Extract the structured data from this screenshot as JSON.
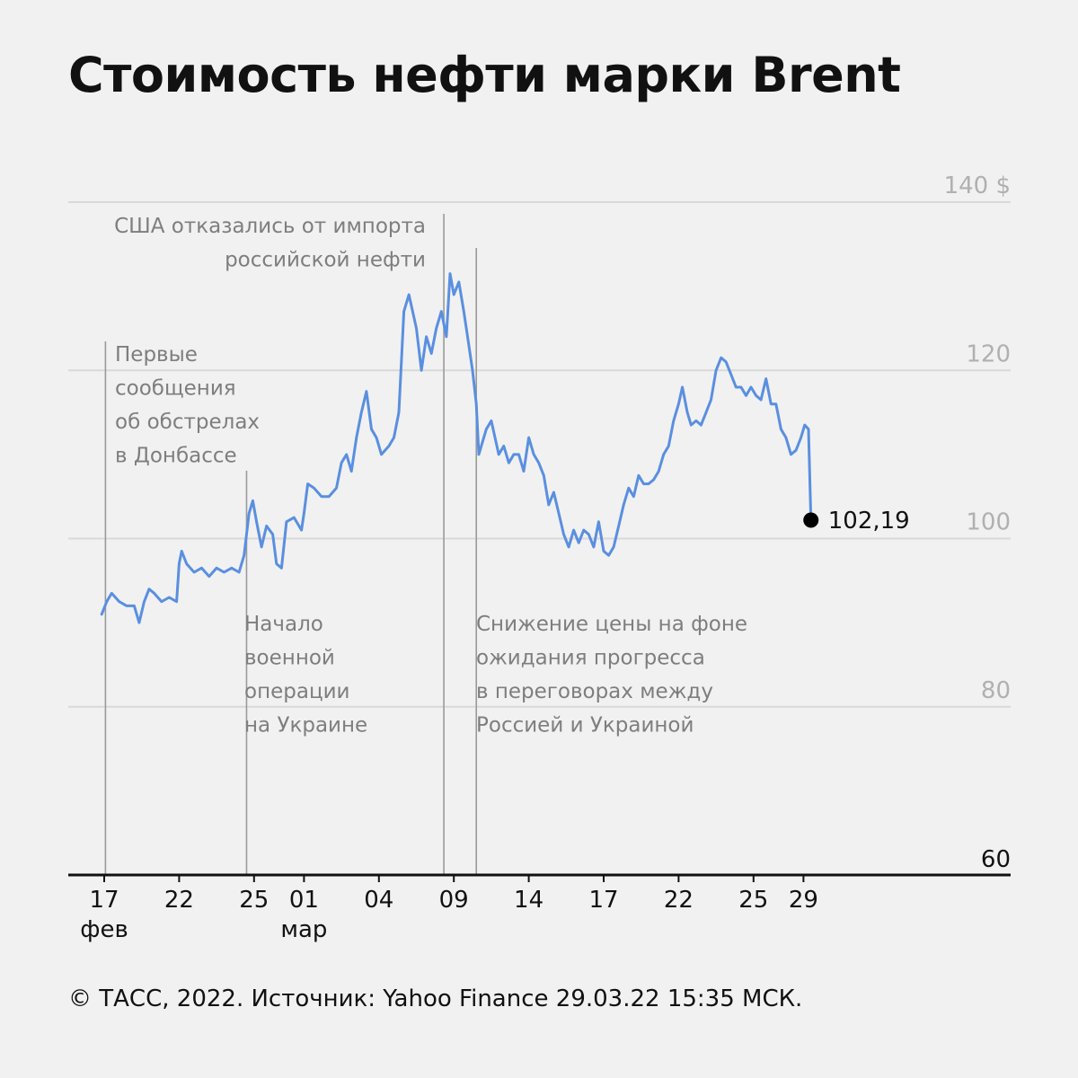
{
  "title": "Стоимость нефти марки Brent",
  "footer": "© ТАСС, 2022. Источник: Yahoo Finance 29.03.22 15:35 МСК.",
  "colors": {
    "line": "#5a8fe0",
    "grid": "#d9d9d9",
    "axis": "#111111",
    "annotation": "#7e7e7e",
    "background": "#f1f1f1"
  },
  "chart_data": {
    "type": "line",
    "title": "Стоимость нефти марки Brent",
    "ylim": [
      60,
      140
    ],
    "yticks": [
      {
        "value": 140,
        "label": "140 $"
      },
      {
        "value": 120,
        "label": "120"
      },
      {
        "value": 100,
        "label": "100"
      },
      {
        "value": 80,
        "label": "80"
      },
      {
        "value": 60,
        "label": "60"
      }
    ],
    "xticks": [
      {
        "pos": 0,
        "label": "17",
        "sub": "фев"
      },
      {
        "pos": 3,
        "label": "22",
        "sub": ""
      },
      {
        "pos": 6,
        "label": "25",
        "sub": ""
      },
      {
        "pos": 8,
        "label": "01",
        "sub": "мар"
      },
      {
        "pos": 11,
        "label": "04",
        "sub": ""
      },
      {
        "pos": 14,
        "label": "09",
        "sub": ""
      },
      {
        "pos": 17,
        "label": "14",
        "sub": ""
      },
      {
        "pos": 20,
        "label": "17",
        "sub": ""
      },
      {
        "pos": 23,
        "label": "22",
        "sub": ""
      },
      {
        "pos": 26,
        "label": "25",
        "sub": ""
      },
      {
        "pos": 28,
        "label": "29",
        "sub": ""
      }
    ],
    "series": [
      {
        "values": [
          [
            -0.1,
            91.0
          ],
          [
            0.1,
            92.5
          ],
          [
            0.3,
            93.5
          ],
          [
            0.6,
            92.5
          ],
          [
            0.9,
            92.0
          ],
          [
            1.2,
            92.0
          ],
          [
            1.4,
            90.0
          ],
          [
            1.6,
            92.5
          ],
          [
            1.8,
            94.0
          ],
          [
            2.0,
            93.5
          ],
          [
            2.3,
            92.5
          ],
          [
            2.6,
            93.0
          ],
          [
            2.9,
            92.5
          ],
          [
            3.0,
            97.0
          ],
          [
            3.1,
            98.5
          ],
          [
            3.3,
            97.0
          ],
          [
            3.6,
            96.0
          ],
          [
            3.9,
            96.5
          ],
          [
            4.2,
            95.5
          ],
          [
            4.5,
            96.5
          ],
          [
            4.8,
            96.0
          ],
          [
            5.1,
            96.5
          ],
          [
            5.4,
            96.0
          ],
          [
            5.6,
            98.0
          ],
          [
            5.8,
            103.0
          ],
          [
            5.95,
            104.5
          ],
          [
            6.1,
            102.0
          ],
          [
            6.3,
            99.0
          ],
          [
            6.5,
            101.5
          ],
          [
            6.75,
            100.5
          ],
          [
            6.9,
            97.0
          ],
          [
            7.1,
            96.5
          ],
          [
            7.3,
            102.0
          ],
          [
            7.6,
            102.5
          ],
          [
            7.9,
            101.0
          ],
          [
            8.0,
            103.0
          ],
          [
            8.15,
            106.5
          ],
          [
            8.4,
            106.0
          ],
          [
            8.7,
            105.0
          ],
          [
            9.0,
            105.0
          ],
          [
            9.3,
            106.0
          ],
          [
            9.5,
            109.0
          ],
          [
            9.7,
            110.0
          ],
          [
            9.9,
            108.0
          ],
          [
            10.1,
            112.0
          ],
          [
            10.3,
            115.0
          ],
          [
            10.5,
            117.5
          ],
          [
            10.7,
            113.0
          ],
          [
            10.9,
            112.0
          ],
          [
            11.1,
            110.0
          ],
          [
            11.4,
            111.0
          ],
          [
            11.6,
            112.0
          ],
          [
            11.8,
            115.0
          ],
          [
            12.0,
            127.0
          ],
          [
            12.2,
            129.0
          ],
          [
            12.5,
            125.0
          ],
          [
            12.7,
            120.0
          ],
          [
            12.9,
            124.0
          ],
          [
            13.1,
            122.0
          ],
          [
            13.3,
            125.0
          ],
          [
            13.5,
            127.0
          ],
          [
            13.7,
            124.0
          ],
          [
            13.85,
            131.5
          ],
          [
            14.0,
            129.0
          ],
          [
            14.2,
            130.5
          ],
          [
            14.4,
            127.0
          ],
          [
            14.55,
            124.0
          ],
          [
            14.75,
            120.0
          ],
          [
            14.9,
            116.0
          ],
          [
            15.0,
            110.0
          ],
          [
            15.3,
            113.0
          ],
          [
            15.5,
            114.0
          ],
          [
            15.8,
            110.0
          ],
          [
            16.0,
            111.0
          ],
          [
            16.2,
            109.0
          ],
          [
            16.4,
            110.0
          ],
          [
            16.6,
            110.0
          ],
          [
            16.8,
            108.0
          ],
          [
            17.0,
            112.0
          ],
          [
            17.2,
            110.0
          ],
          [
            17.4,
            109.0
          ],
          [
            17.6,
            107.5
          ],
          [
            17.8,
            104.0
          ],
          [
            18.0,
            105.5
          ],
          [
            18.2,
            103.0
          ],
          [
            18.4,
            100.5
          ],
          [
            18.6,
            99.0
          ],
          [
            18.8,
            101.0
          ],
          [
            19.0,
            99.5
          ],
          [
            19.2,
            101.0
          ],
          [
            19.4,
            100.5
          ],
          [
            19.6,
            99.0
          ],
          [
            19.8,
            102.0
          ],
          [
            20.0,
            98.5
          ],
          [
            20.2,
            98.0
          ],
          [
            20.4,
            99.0
          ],
          [
            20.6,
            101.5
          ],
          [
            20.8,
            104.0
          ],
          [
            21.0,
            106.0
          ],
          [
            21.2,
            105.0
          ],
          [
            21.4,
            107.5
          ],
          [
            21.6,
            106.5
          ],
          [
            21.8,
            106.5
          ],
          [
            22.0,
            107.0
          ],
          [
            22.2,
            108.0
          ],
          [
            22.4,
            110.0
          ],
          [
            22.6,
            111.0
          ],
          [
            22.8,
            114.0
          ],
          [
            23.0,
            116.0
          ],
          [
            23.15,
            118.0
          ],
          [
            23.35,
            115.0
          ],
          [
            23.5,
            113.5
          ],
          [
            23.7,
            114.0
          ],
          [
            23.9,
            113.5
          ],
          [
            24.1,
            115.0
          ],
          [
            24.3,
            116.5
          ],
          [
            24.5,
            120.0
          ],
          [
            24.7,
            121.5
          ],
          [
            24.9,
            121.0
          ],
          [
            25.1,
            119.5
          ],
          [
            25.3,
            118.0
          ],
          [
            25.5,
            118.0
          ],
          [
            25.7,
            117.0
          ],
          [
            25.9,
            118.0
          ],
          [
            26.1,
            117.0
          ],
          [
            26.3,
            116.5
          ],
          [
            26.5,
            119.0
          ],
          [
            26.7,
            116.0
          ],
          [
            26.9,
            116.0
          ],
          [
            27.1,
            113.0
          ],
          [
            27.3,
            112.0
          ],
          [
            27.5,
            110.0
          ],
          [
            27.7,
            110.5
          ],
          [
            27.9,
            112.0
          ],
          [
            28.05,
            113.5
          ],
          [
            28.2,
            113.0
          ],
          [
            28.3,
            102.19
          ]
        ]
      }
    ],
    "last_value_label": "102,19",
    "annotations": [
      {
        "pos": 0.05,
        "lines": [
          "Первые",
          "сообщения",
          "об обстрелах",
          "в Донбассе"
        ]
      },
      {
        "pos": 5.7,
        "lines": [
          "Начало",
          "военной",
          "операции",
          "на Украине"
        ]
      },
      {
        "pos": 13.6,
        "lines": [
          "США отказались от импорта",
          "российской нефти"
        ]
      },
      {
        "pos": 14.9,
        "lines": [
          "Снижение цены на фоне",
          "ожидания прогресса",
          "в переговорах между",
          "Россией и Украиной"
        ]
      }
    ]
  }
}
